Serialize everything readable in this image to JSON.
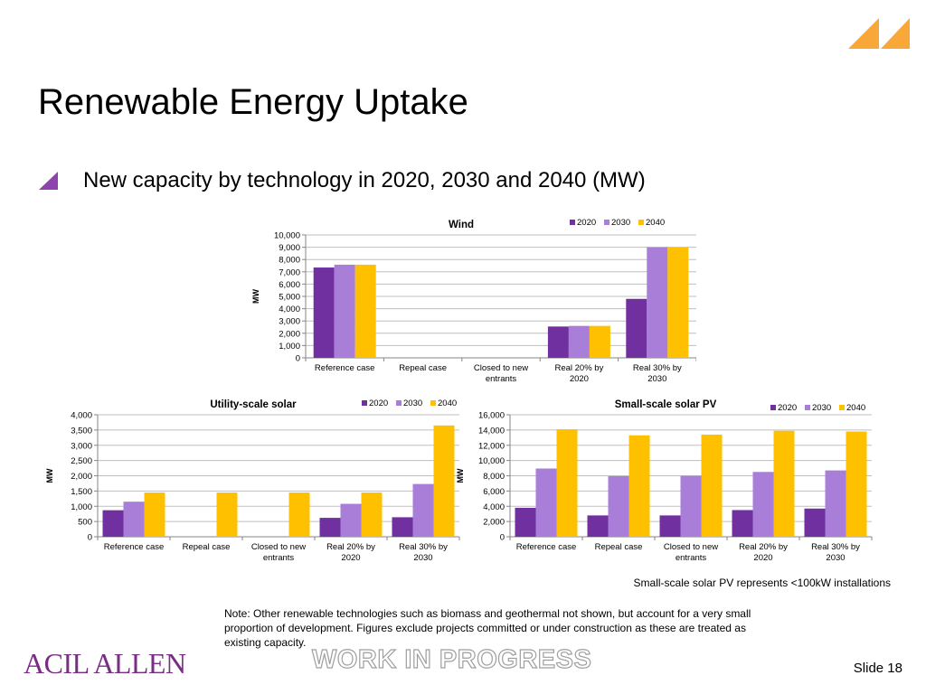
{
  "slide": {
    "title": "Renewable Energy Uptake",
    "bullet": "New capacity by technology in 2020, 2030 and 2040 (MW)",
    "small_pv_note": "Small-scale solar PV represents <100kW installations",
    "note": "Note: Other renewable technologies such as biomass and geothermal not shown, but account for  a very small proportion of development. Figures exclude projects committed or under construction as these are treated as existing capacity.",
    "watermark": "WORK IN PROGRESS",
    "logo": "ACIL ALLEN",
    "slide_number": "Slide 18"
  },
  "colors": {
    "2020": "#7030a0",
    "2030": "#a87ed8",
    "2040": "#ffc000",
    "accent_triangle": "#f8a838",
    "bullet_triangle": "#8e44ad",
    "grid": "#bfbfbf",
    "axis": "#868686"
  },
  "chart_data": [
    {
      "id": "wind",
      "type": "bar",
      "title": "Wind",
      "ylabel": "MW",
      "ylim": [
        0,
        10000
      ],
      "yticks": [
        0,
        1000,
        2000,
        3000,
        4000,
        5000,
        6000,
        7000,
        8000,
        9000,
        10000
      ],
      "ytick_labels": [
        "0",
        "1,000",
        "2,000",
        "3,000",
        "4,000",
        "5,000",
        "6,000",
        "7,000",
        "8,000",
        "9,000",
        "10,000"
      ],
      "categories": [
        "Reference case",
        "Repeal case",
        "Closed to new entrants",
        "Real 20% by 2020",
        "Real 30% by 2030"
      ],
      "category_lines": [
        [
          "Reference case"
        ],
        [
          "Repeal case"
        ],
        [
          "Closed to new",
          "entrants"
        ],
        [
          "Real 20% by",
          "2020"
        ],
        [
          "Real 30% by",
          "2030"
        ]
      ],
      "legend": "top-right",
      "grid": true,
      "series": [
        {
          "name": "2020",
          "values": [
            7350,
            0,
            0,
            2550,
            4800
          ]
        },
        {
          "name": "2030",
          "values": [
            7580,
            0,
            0,
            2600,
            9000
          ]
        },
        {
          "name": "2040",
          "values": [
            7580,
            0,
            0,
            2600,
            9000
          ]
        }
      ]
    },
    {
      "id": "utility",
      "type": "bar",
      "title": "Utility-scale solar",
      "ylabel": "MW",
      "ylim": [
        0,
        4000
      ],
      "yticks": [
        0,
        500,
        1000,
        1500,
        2000,
        2500,
        3000,
        3500,
        4000
      ],
      "ytick_labels": [
        "0",
        "500",
        "1,000",
        "1,500",
        "2,000",
        "2,500",
        "3,000",
        "3,500",
        "4,000"
      ],
      "categories": [
        "Reference case",
        "Repeal case",
        "Closed to new entrants",
        "Real 20% by 2020",
        "Real 30% by 2030"
      ],
      "category_lines": [
        [
          "Reference case"
        ],
        [
          "Repeal case"
        ],
        [
          "Closed to new",
          "entrants"
        ],
        [
          "Real 20% by",
          "2020"
        ],
        [
          "Real 30% by",
          "2030"
        ]
      ],
      "legend": "top-right",
      "grid": true,
      "series": [
        {
          "name": "2020",
          "values": [
            870,
            0,
            0,
            620,
            640
          ]
        },
        {
          "name": "2030",
          "values": [
            1150,
            0,
            0,
            1080,
            1730
          ]
        },
        {
          "name": "2040",
          "values": [
            1450,
            1450,
            1450,
            1450,
            3650
          ]
        }
      ]
    },
    {
      "id": "smallpv",
      "type": "bar",
      "title": "Small-scale solar PV",
      "ylabel": "MW",
      "ylim": [
        0,
        16000
      ],
      "yticks": [
        0,
        2000,
        4000,
        6000,
        8000,
        10000,
        12000,
        14000,
        16000
      ],
      "ytick_labels": [
        "0",
        "2,000",
        "4,000",
        "6,000",
        "8,000",
        "10,000",
        "12,000",
        "14,000",
        "16,000"
      ],
      "categories": [
        "Reference case",
        "Repeal case",
        "Closed to new entrants",
        "Real 20% by 2020",
        "Real 30% by 2030"
      ],
      "category_lines": [
        [
          "Reference case"
        ],
        [
          "Repeal case"
        ],
        [
          "Closed to new",
          "entrants"
        ],
        [
          "Real 20% by",
          "2020"
        ],
        [
          "Real 30% by",
          "2030"
        ]
      ],
      "legend": "top-right",
      "grid": true,
      "series": [
        {
          "name": "2020",
          "values": [
            3800,
            2800,
            2800,
            3500,
            3700
          ]
        },
        {
          "name": "2030",
          "values": [
            8950,
            7950,
            8000,
            8500,
            8700
          ]
        },
        {
          "name": "2040",
          "values": [
            14100,
            13300,
            13400,
            13900,
            13800
          ]
        }
      ]
    }
  ]
}
